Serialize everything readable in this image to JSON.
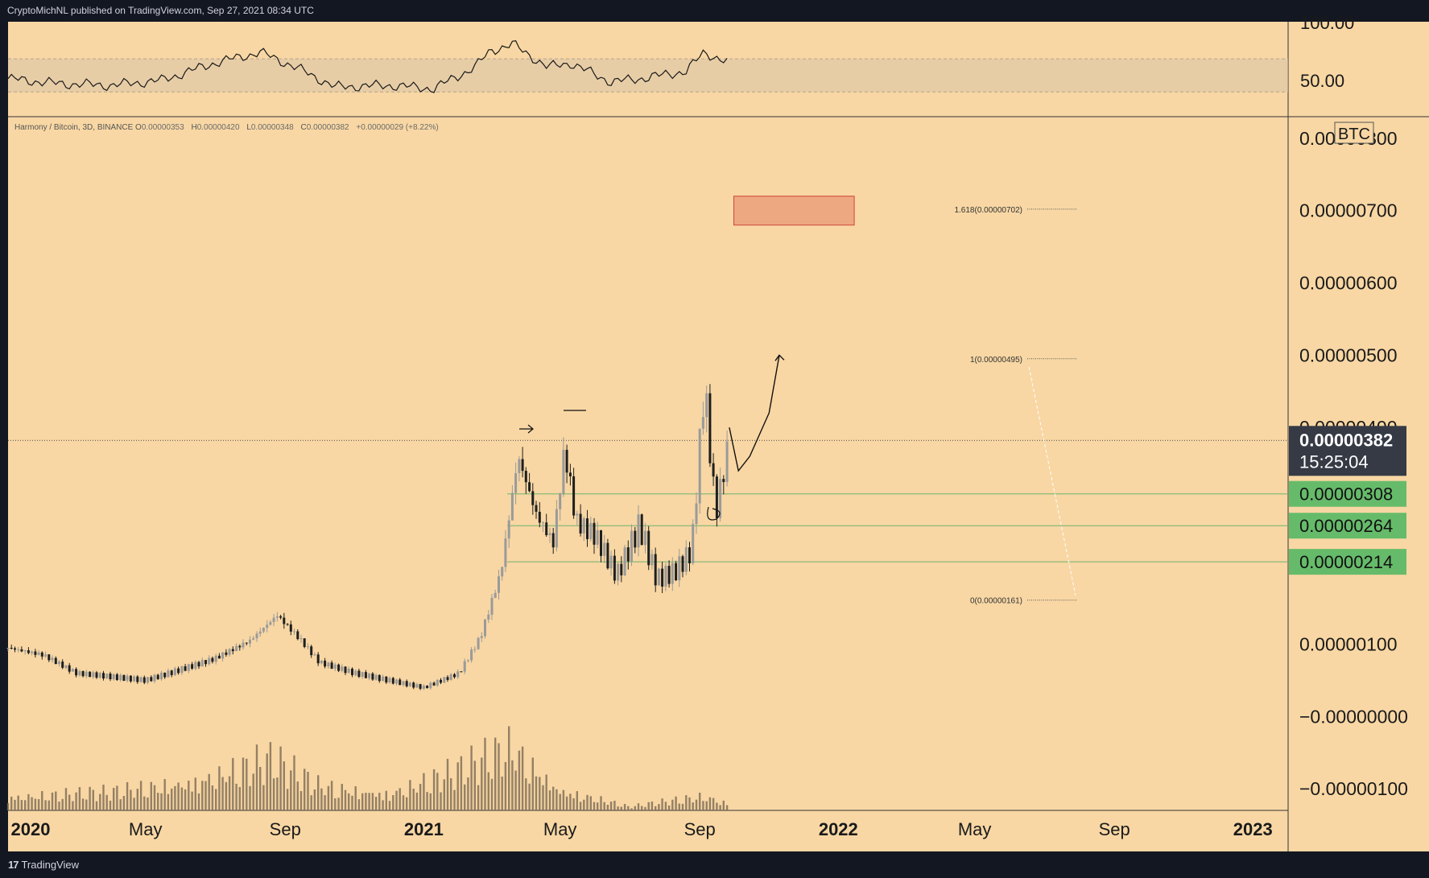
{
  "header": {
    "publisher": "CryptoMichNL published on TradingView.com, Sep 27, 2021 08:34 UTC"
  },
  "footer": {
    "brand": "TradingView",
    "logo": "tv-logo-icon"
  },
  "legend": {
    "symbol": "Harmony / Bitcoin, 3D, BINANCE",
    "o_label": "O",
    "o": "0.00000353",
    "h_label": "H",
    "h": "0.00000420",
    "l_label": "L",
    "l": "0.00000348",
    "c_label": "C",
    "c": "0.00000382",
    "change": "+0.00000029 (+8.22%)"
  },
  "rsi_axis": {
    "ticks": [
      "100.00",
      "50.00"
    ],
    "band": [
      30,
      70
    ]
  },
  "price_axis": {
    "currency": "BTC",
    "ticks": [
      "0.00000800",
      "0.00000700",
      "0.00000600",
      "0.00000500",
      "0.00000400",
      "0.00000100",
      "−0.00000000",
      "−0.00000100"
    ]
  },
  "price_badges": {
    "current": "0.00000382",
    "countdown": "15:25:04",
    "levels": [
      "0.00000308",
      "0.00000264",
      "0.00000214"
    ],
    "current_color": "#363a45",
    "level_color": "#66bb6a"
  },
  "fib_labels": [
    "1.618(0.00000702)",
    "1(0.00000495)",
    "0(0.00000161)"
  ],
  "time_axis": {
    "labels": [
      "2020",
      "May",
      "Sep",
      "2021",
      "May",
      "Sep",
      "2022",
      "May",
      "Sep",
      "2023"
    ]
  },
  "chart_data": {
    "type": "candlestick",
    "x_range": [
      "2020-01",
      "2023-02"
    ],
    "y_range": [
      -1.3e-06,
      8.3e-06
    ],
    "close_path": [
      [
        "2020-01-01",
        9.5e-07
      ],
      [
        "2020-02-01",
        8.5e-07
      ],
      [
        "2020-03-01",
        6e-07
      ],
      [
        "2020-04-01",
        5.5e-07
      ],
      [
        "2020-05-01",
        5e-07
      ],
      [
        "2020-06-01",
        6.5e-07
      ],
      [
        "2020-07-01",
        8e-07
      ],
      [
        "2020-08-01",
        1.05e-06
      ],
      [
        "2020-08-25",
        1.4e-06
      ],
      [
        "2020-09-15",
        1.05e-06
      ],
      [
        "2020-10-01",
        7.5e-07
      ],
      [
        "2020-11-01",
        6e-07
      ],
      [
        "2020-12-01",
        5e-07
      ],
      [
        "2021-01-01",
        4e-07
      ],
      [
        "2021-02-01",
        6e-07
      ],
      [
        "2021-02-20",
        1.1e-06
      ],
      [
        "2021-03-10",
        2e-06
      ],
      [
        "2021-03-25",
        3.6e-06
      ],
      [
        "2021-04-10",
        2.8e-06
      ],
      [
        "2021-04-25",
        2.4e-06
      ],
      [
        "2021-05-05",
        3.7e-06
      ],
      [
        "2021-05-15",
        2.7e-06
      ],
      [
        "2021-06-01",
        2.5e-06
      ],
      [
        "2021-06-20",
        1.95e-06
      ],
      [
        "2021-07-10",
        2.65e-06
      ],
      [
        "2021-07-25",
        1.9e-06
      ],
      [
        "2021-08-10",
        2e-06
      ],
      [
        "2021-08-25",
        2.3e-06
      ],
      [
        "2021-09-05",
        4.6e-06
      ],
      [
        "2021-09-15",
        2.8e-06
      ],
      [
        "2021-09-27",
        3.82e-06
      ]
    ],
    "volume_path": [
      [
        "2020-01-01",
        0.2
      ],
      [
        "2020-04-01",
        0.25
      ],
      [
        "2020-06-01",
        0.4
      ],
      [
        "2020-08-20",
        0.7
      ],
      [
        "2020-10-01",
        0.35
      ],
      [
        "2020-12-01",
        0.25
      ],
      [
        "2021-02-01",
        0.55
      ],
      [
        "2021-03-20",
        0.9
      ],
      [
        "2021-05-01",
        0.3
      ],
      [
        "2021-07-01",
        0.05
      ],
      [
        "2021-09-05",
        0.2
      ],
      [
        "2021-09-27",
        0.1
      ]
    ],
    "rsi_path": [
      [
        "2020-01-01",
        46
      ],
      [
        "2020-02-15",
        40
      ],
      [
        "2020-04-01",
        38
      ],
      [
        "2020-05-15",
        44
      ],
      [
        "2020-07-01",
        65
      ],
      [
        "2020-08-10",
        78
      ],
      [
        "2020-09-10",
        60
      ],
      [
        "2020-10-15",
        36
      ],
      [
        "2020-12-01",
        38
      ],
      [
        "2021-01-10",
        34
      ],
      [
        "2021-02-15",
        60
      ],
      [
        "2021-03-01",
        80
      ],
      [
        "2021-03-20",
        88
      ],
      [
        "2021-04-20",
        60
      ],
      [
        "2021-05-10",
        65
      ],
      [
        "2021-06-15",
        42
      ],
      [
        "2021-07-15",
        47
      ],
      [
        "2021-08-20",
        55
      ],
      [
        "2021-09-05",
        78
      ],
      [
        "2021-09-27",
        65
      ]
    ],
    "levels": [
      3.08e-06,
      2.64e-06,
      2.14e-06
    ],
    "fibonacci": [
      {
        "ratio": 1.618,
        "price": 7.02e-06
      },
      {
        "ratio": 1,
        "price": 4.95e-06
      },
      {
        "ratio": 0,
        "price": 1.61e-06
      }
    ],
    "target_zone": {
      "from": "2021-10-01",
      "to": "2022-01-15",
      "low": 6.8e-06,
      "high": 7.2e-06
    },
    "projection": [
      [
        "2021-09-27",
        4e-06
      ],
      [
        "2021-10-05",
        3.4e-06
      ],
      [
        "2021-10-15",
        3.6e-06
      ],
      [
        "2021-11-01",
        4.2e-06
      ],
      [
        "2021-11-10",
        5e-06
      ]
    ]
  }
}
